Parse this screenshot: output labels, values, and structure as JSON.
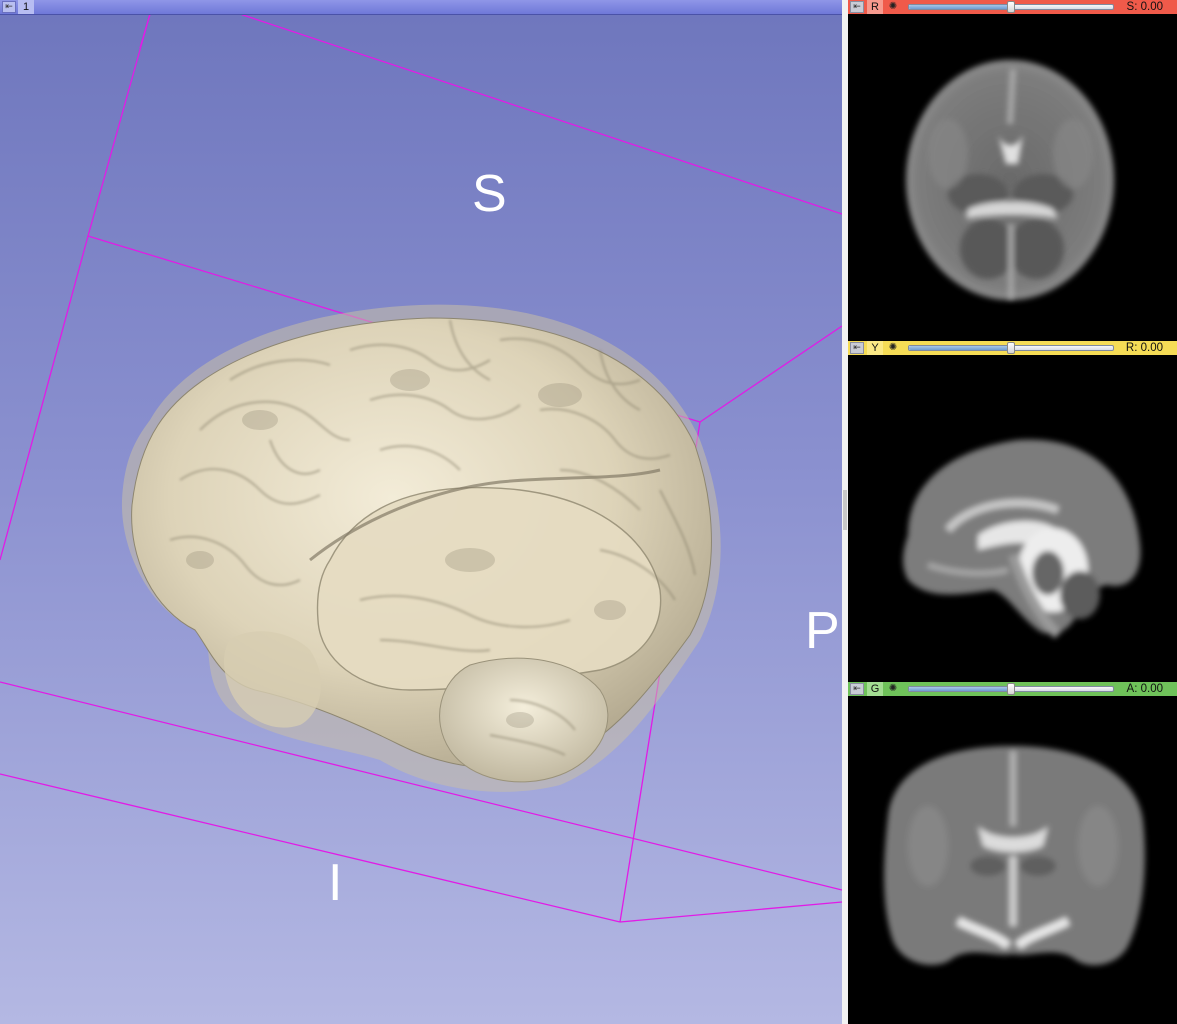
{
  "view3d": {
    "view_number": "1",
    "pin_icon": "pin-icon",
    "labels": {
      "superior": "S",
      "posterior": "P",
      "inferior": "I"
    },
    "background_top": "#6e76bd",
    "background_bottom": "#b4b8e3",
    "bounding_box_color": "#e11be6",
    "brain_color": "#e8e0c8"
  },
  "slices": [
    {
      "name": "red",
      "letter": "R",
      "bar_color": "#f05a4a",
      "value_label": "S: 0.00",
      "slider_position": 0.5,
      "eye_icon": "eye-icon",
      "orientation": "axial"
    },
    {
      "name": "yellow",
      "letter": "Y",
      "bar_color": "#f5dc56",
      "value_label": "R: 0.00",
      "slider_position": 0.5,
      "eye_icon": "eye-icon",
      "orientation": "sagittal"
    },
    {
      "name": "green",
      "letter": "G",
      "bar_color": "#6fc25a",
      "value_label": "A: 0.00",
      "slider_position": 0.5,
      "eye_icon": "eye-icon",
      "orientation": "coronal"
    }
  ]
}
